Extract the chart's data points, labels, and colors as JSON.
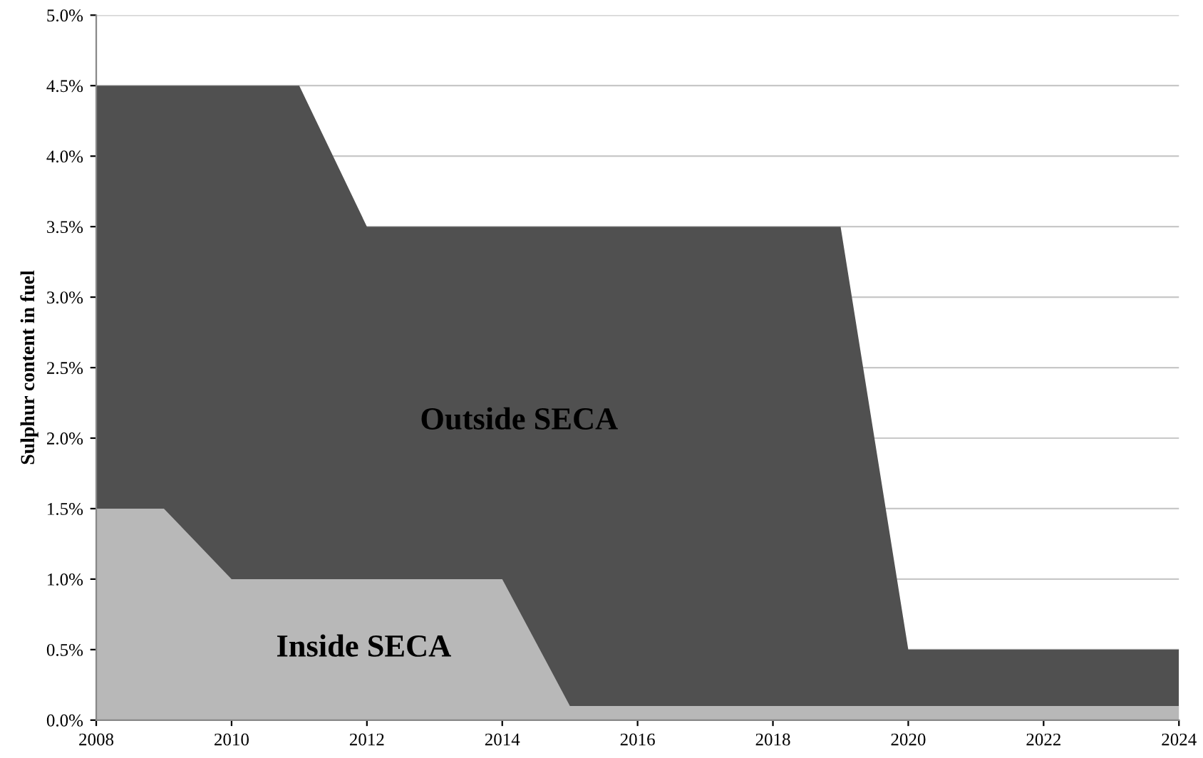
{
  "chart_data": {
    "type": "area",
    "ylabel": "Sulphur content in fuel",
    "series": [
      {
        "name": "Outside SECA",
        "color": "#505050",
        "x": [
          2008,
          2011,
          2012,
          2019,
          2020,
          2024
        ],
        "values": [
          4.5,
          4.5,
          3.5,
          3.5,
          0.5,
          0.5
        ]
      },
      {
        "name": "Inside SECA",
        "color": "#b8b8b8",
        "x": [
          2008,
          2009,
          2010,
          2014,
          2015,
          2024
        ],
        "values": [
          1.5,
          1.5,
          1.0,
          1.0,
          0.1,
          0.1
        ]
      }
    ],
    "xlim": [
      2008,
      2024
    ],
    "xticks": [
      2008,
      2010,
      2012,
      2014,
      2016,
      2018,
      2020,
      2022,
      2024
    ],
    "ylim": [
      0,
      5
    ],
    "yticks": [
      {
        "value": 0,
        "label": "0.0%"
      },
      {
        "value": 0.5,
        "label": "0.5%"
      },
      {
        "value": 1,
        "label": "1.0%"
      },
      {
        "value": 1.5,
        "label": "1.5%"
      },
      {
        "value": 2,
        "label": "2.0%"
      },
      {
        "value": 2.5,
        "label": "2.5%"
      },
      {
        "value": 3,
        "label": "3.0%"
      },
      {
        "value": 3.5,
        "label": "3.5%"
      },
      {
        "value": 4,
        "label": "4.0%"
      },
      {
        "value": 4.5,
        "label": "4.5%"
      },
      {
        "value": 5,
        "label": "5.0%"
      }
    ],
    "grid": "y"
  }
}
